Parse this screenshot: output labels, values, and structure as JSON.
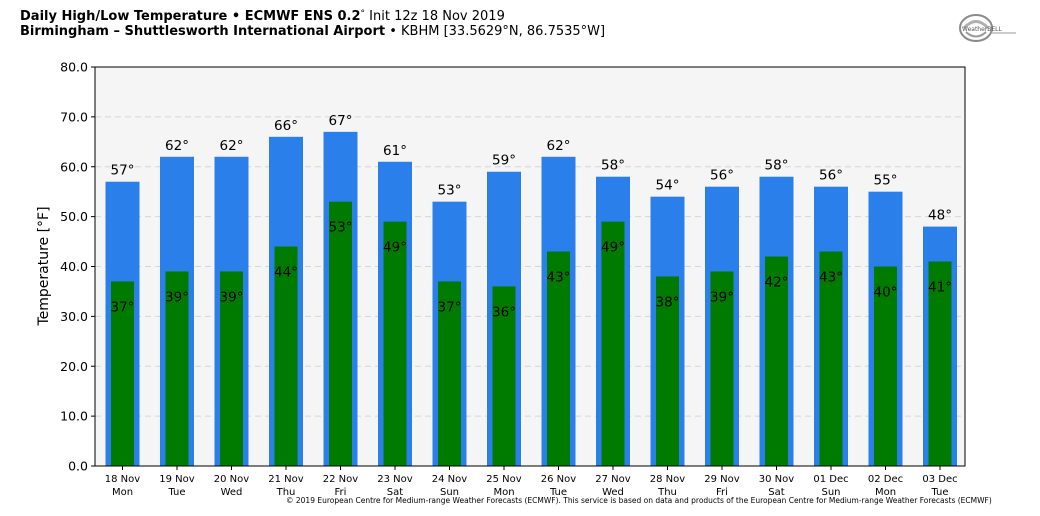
{
  "header": {
    "title_bold": "Daily High/Low Temperature • ECMWF ENS 0.2",
    "title_degree": "°",
    "title_init": " Init 12z 18 Nov 2019",
    "location_bold": "Birmingham – Shuttlesworth International Airport",
    "location_detail": " • KBHM [33.5629°N, 86.7535°W]"
  },
  "logo": {
    "name": "weatherbell-logo-icon",
    "text": "WeatherBELL"
  },
  "copyright": "© 2019 European Centre for Medium-range Weather Forecasts (ECMWF). This service is based on data and products of the European Centre for Medium-range Weather Forecasts (ECMWF)",
  "colors": {
    "high": "#2a7fea",
    "low": "#007b00",
    "plot_bg": "#f5f5f5",
    "grid": "#d6d6d6"
  },
  "chart_data": {
    "type": "bar",
    "ylabel": "Temperature [°F]",
    "ylim": [
      0,
      80
    ],
    "yticks": [
      "0.0",
      "10.0",
      "20.0",
      "30.0",
      "40.0",
      "50.0",
      "60.0",
      "70.0",
      "80.0"
    ],
    "grid": true,
    "categories": [
      {
        "date": "18 Nov",
        "day": "Mon"
      },
      {
        "date": "19 Nov",
        "day": "Tue"
      },
      {
        "date": "20 Nov",
        "day": "Wed"
      },
      {
        "date": "21 Nov",
        "day": "Thu"
      },
      {
        "date": "22 Nov",
        "day": "Fri"
      },
      {
        "date": "23 Nov",
        "day": "Sat"
      },
      {
        "date": "24 Nov",
        "day": "Sun"
      },
      {
        "date": "25 Nov",
        "day": "Mon"
      },
      {
        "date": "26 Nov",
        "day": "Tue"
      },
      {
        "date": "27 Nov",
        "day": "Wed"
      },
      {
        "date": "28 Nov",
        "day": "Thu"
      },
      {
        "date": "29 Nov",
        "day": "Fri"
      },
      {
        "date": "30 Nov",
        "day": "Sat"
      },
      {
        "date": "01 Dec",
        "day": "Sun"
      },
      {
        "date": "02 Dec",
        "day": "Mon"
      },
      {
        "date": "03 Dec",
        "day": "Tue"
      }
    ],
    "series": [
      {
        "key": "high",
        "values": [
          57,
          62,
          62,
          66,
          67,
          61,
          53,
          59,
          62,
          58,
          54,
          56,
          58,
          56,
          55,
          48
        ]
      },
      {
        "key": "low",
        "values": [
          37,
          39,
          39,
          44,
          53,
          49,
          37,
          36,
          43,
          49,
          38,
          39,
          42,
          43,
          40,
          41
        ]
      }
    ],
    "value_suffix": "°"
  }
}
